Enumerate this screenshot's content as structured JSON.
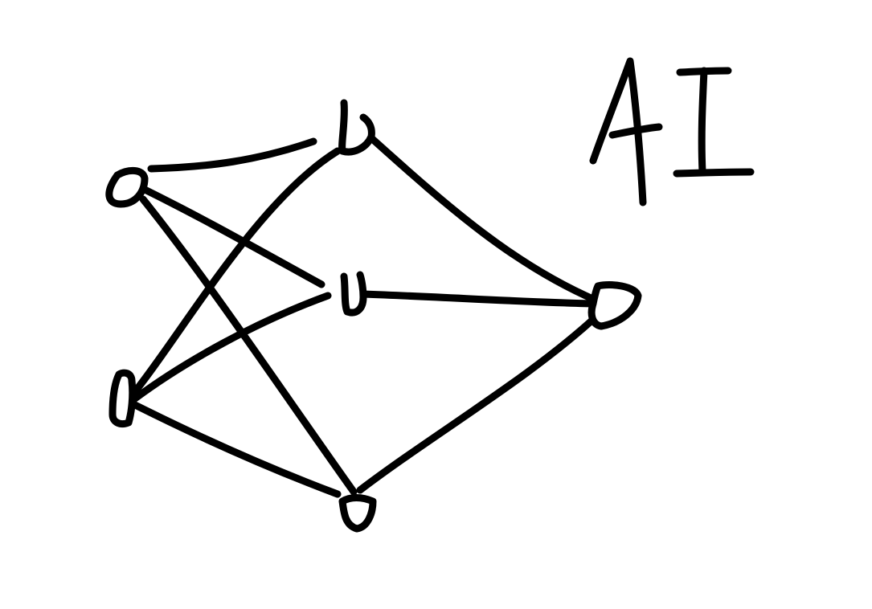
{
  "diagram": {
    "type": "neural-network-sketch",
    "label": "AI",
    "colors": {
      "background": "#ffffff",
      "ink": "#000000"
    },
    "layers": [
      {
        "name": "input",
        "node_count": 2
      },
      {
        "name": "hidden",
        "node_count": 3
      },
      {
        "name": "output",
        "node_count": 1
      }
    ],
    "connections": [
      {
        "from": "input-1",
        "to": "hidden-1"
      },
      {
        "from": "input-1",
        "to": "hidden-2"
      },
      {
        "from": "input-1",
        "to": "hidden-3"
      },
      {
        "from": "input-2",
        "to": "hidden-1"
      },
      {
        "from": "input-2",
        "to": "hidden-2"
      },
      {
        "from": "input-2",
        "to": "hidden-3"
      },
      {
        "from": "hidden-1",
        "to": "output-1"
      },
      {
        "from": "hidden-2",
        "to": "output-1"
      },
      {
        "from": "hidden-3",
        "to": "output-1"
      }
    ]
  }
}
